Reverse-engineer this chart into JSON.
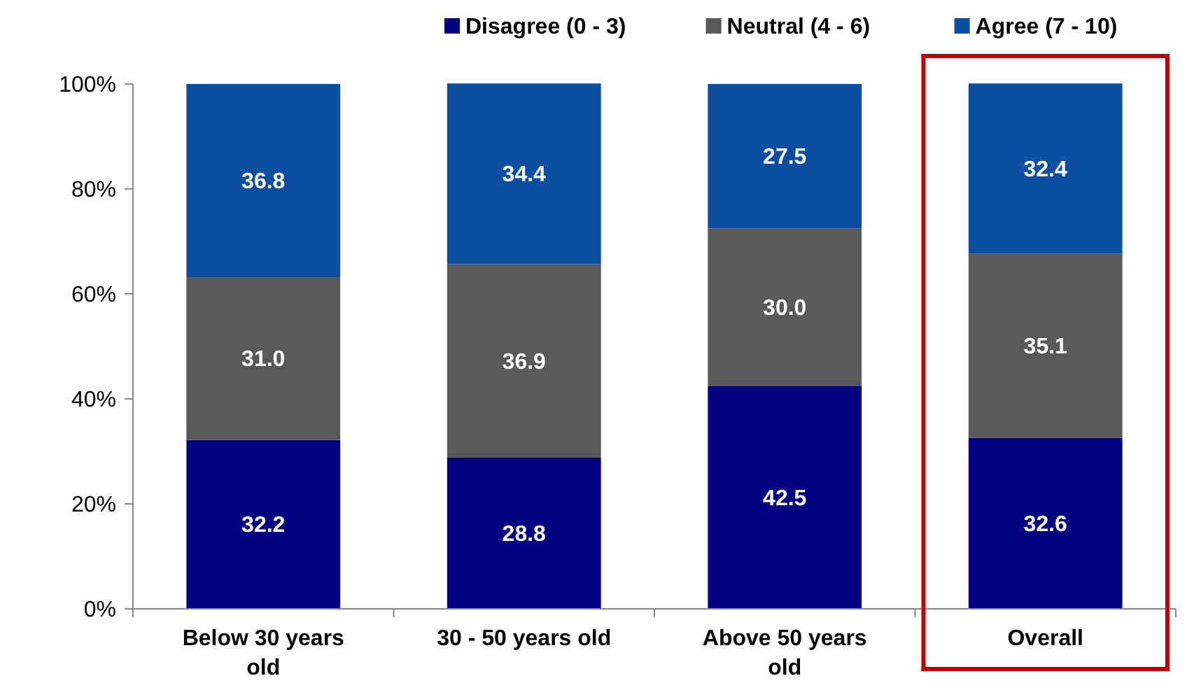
{
  "chart_data": {
    "type": "bar",
    "stacked": true,
    "categories": [
      "Below 30 years old",
      "30 - 50 years old",
      "Above 50 years old",
      "Overall"
    ],
    "series": [
      {
        "name": "Disagree (0 - 3)",
        "color": "#000080",
        "values": [
          32.2,
          28.8,
          42.5,
          32.6
        ],
        "value_labels": [
          "32.2",
          "28.8",
          "42.5",
          "32.6"
        ]
      },
      {
        "name": "Neutral (4 - 6)",
        "color": "#595959",
        "values": [
          31.0,
          36.9,
          30.0,
          35.1
        ],
        "value_labels": [
          "31.0",
          "36.9",
          "30.0",
          "35.1"
        ]
      },
      {
        "name": "Agree (7 - 10)",
        "color": "#0b4ea2",
        "values": [
          36.8,
          34.4,
          27.5,
          32.4
        ],
        "value_labels": [
          "36.8",
          "34.4",
          "27.5",
          "32.4"
        ]
      }
    ],
    "ylim": [
      0,
      100
    ],
    "yticks": [
      {
        "value": 0,
        "label": "0%"
      },
      {
        "value": 20,
        "label": "20%"
      },
      {
        "value": 40,
        "label": "40%"
      },
      {
        "value": 60,
        "label": "60%"
      },
      {
        "value": 80,
        "label": "80%"
      },
      {
        "value": 100,
        "label": "100%"
      }
    ],
    "legend": "top right",
    "grid": false
  }
}
